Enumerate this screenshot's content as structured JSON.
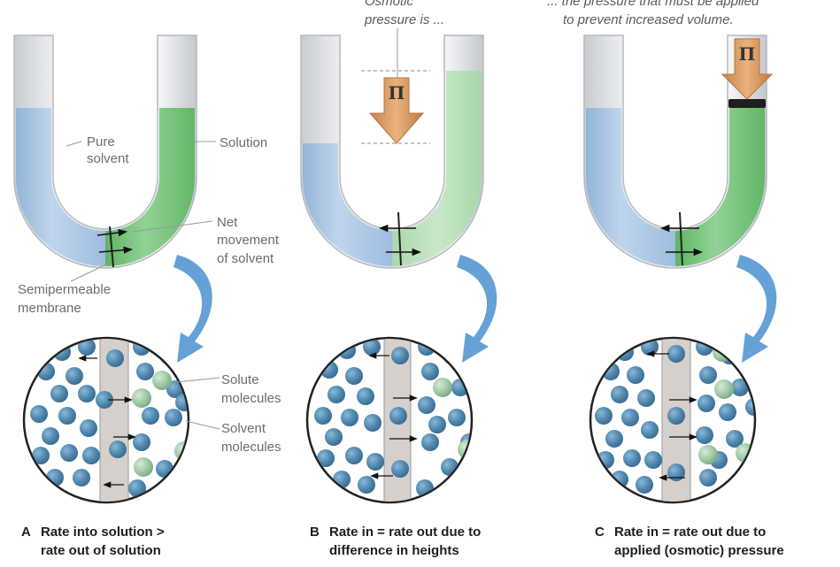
{
  "labels": {
    "pure_solvent_1": "Pure",
    "pure_solvent_2": "solvent",
    "solution": "Solution",
    "net_1": "Net",
    "net_2": "movement",
    "net_3": "of solvent",
    "membrane_1": "Semipermeable",
    "membrane_2": "membrane",
    "solute_1": "Solute",
    "solute_2": "molecules",
    "solvent_mol_1": "Solvent",
    "solvent_mol_2": "molecules",
    "osmotic_1": "Osmotic",
    "osmotic_2": "pressure is ...",
    "applied_1": "... the pressure that must be applied",
    "applied_2": "to prevent increased volume.",
    "pi_symbol": "Π"
  },
  "captions": {
    "a_letter": "A",
    "a_line1": "Rate into solution >",
    "a_line2": "rate out of solution",
    "b_letter": "B",
    "b_line1": "Rate in = rate out due to",
    "b_line2": "difference in heights",
    "c_letter": "C",
    "c_line1": "Rate in = rate out due to",
    "c_line2": "applied (osmotic) pressure"
  },
  "colors": {
    "solvent_blue": "#a9c6e4",
    "solution_green": "#7cc77f",
    "arrow_orange": "#e0a066",
    "curved_arrow_blue": "#4a90d0",
    "solvent_molecule": "#4f86ad",
    "solute_molecule": "#9fc7a6",
    "membrane_grey": "#d6d0cc"
  }
}
